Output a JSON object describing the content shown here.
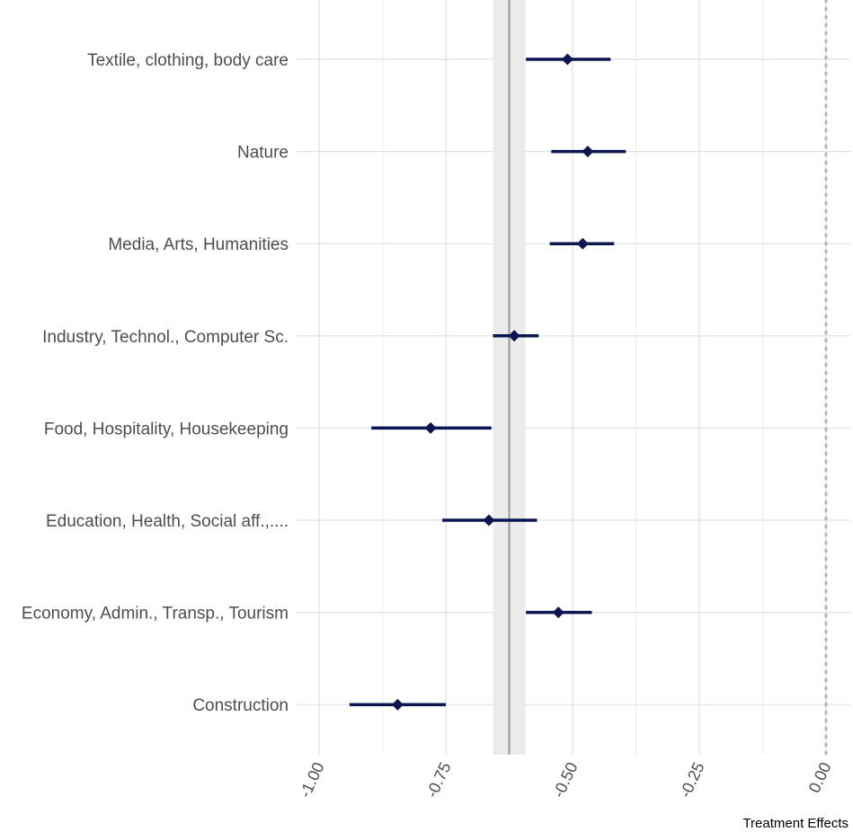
{
  "chart_data": {
    "type": "forest",
    "xlabel": "Treatment Effects",
    "ylabel": "",
    "xlim": [
      -1.05,
      0.05
    ],
    "x_ticks": [
      -1.0,
      -0.75,
      -0.5,
      -0.25,
      0.0
    ],
    "x_tick_labels": [
      "-1.00",
      "-0.75",
      "-0.50",
      "-0.25",
      "0.00"
    ],
    "grid": true,
    "reference_line": {
      "value": 0.0,
      "style": "dotted"
    },
    "overall_estimate": {
      "value": -0.625,
      "ci": [
        -0.657,
        -0.593
      ]
    },
    "categories": [
      "Textile, clothing, body care",
      "Nature",
      "Media, Arts, Humanities",
      "Industry, Technol., Computer Sc.",
      "Food, Hospitality, Housekeeping",
      "Education, Health, Social aff.,....",
      "Economy, Admin., Transp., Tourism",
      "Construction"
    ],
    "series": [
      {
        "estimates": [
          -0.51,
          -0.47,
          -0.48,
          -0.615,
          -0.78,
          -0.665,
          -0.528,
          -0.845
        ],
        "ci_low": [
          -0.592,
          -0.542,
          -0.545,
          -0.657,
          -0.897,
          -0.757,
          -0.592,
          -0.94
        ],
        "ci_high": [
          -0.425,
          -0.395,
          -0.418,
          -0.567,
          -0.66,
          -0.57,
          -0.462,
          -0.75
        ]
      }
    ],
    "colors": {
      "point": "#0b1552",
      "band": "#ebebeb",
      "grid": "#e0e0e0",
      "overall_line": "#9a9a9a",
      "reference": "#b3b3b3"
    }
  }
}
